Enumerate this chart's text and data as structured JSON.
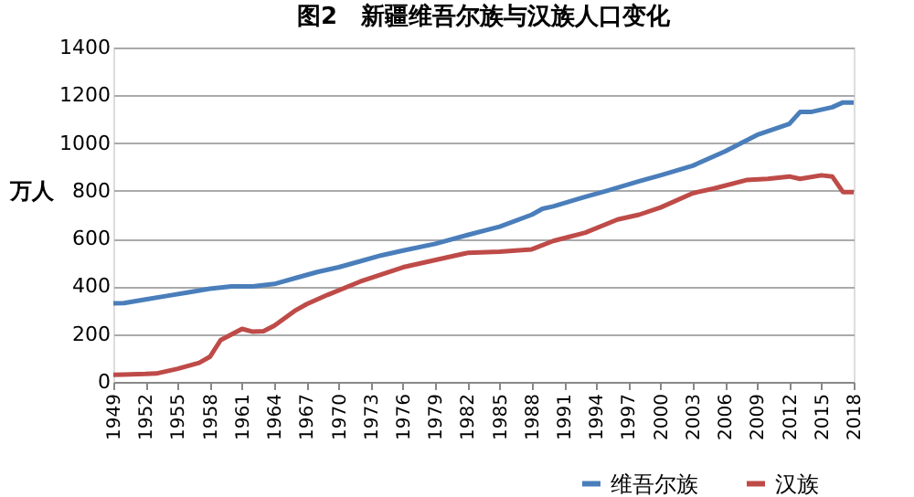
{
  "chart_data": {
    "type": "line",
    "title": "图2　新疆维吾尔族与汉族人口变化",
    "ylabel": "万人",
    "xlim": [
      1949,
      2018
    ],
    "xticks": [
      1949,
      1952,
      1955,
      1958,
      1961,
      1964,
      1967,
      1970,
      1973,
      1976,
      1979,
      1982,
      1985,
      1988,
      1991,
      1994,
      1997,
      2000,
      2003,
      2006,
      2009,
      2012,
      2015,
      2018
    ],
    "ylim": [
      0,
      1400
    ],
    "yticks": [
      0,
      200,
      400,
      600,
      800,
      1000,
      1200,
      1400
    ],
    "grid": "y",
    "legend": "bottom right",
    "marker": "none",
    "line_style": "solid",
    "series": [
      {
        "name": "维吾尔族",
        "color": "#4a7ebb",
        "x": [
          1949,
          1950,
          1952,
          1954,
          1956,
          1958,
          1960,
          1962,
          1964,
          1966,
          1968,
          1970,
          1972,
          1974,
          1976,
          1979,
          1982,
          1985,
          1988,
          1989,
          1990,
          1993,
          1995,
          1998,
          2000,
          2003,
          2006,
          2009,
          2012,
          2013,
          2014,
          2016,
          2017,
          2018
        ],
        "values": [
          329,
          330,
          345,
          360,
          375,
          390,
          400,
          400,
          410,
          435,
          460,
          480,
          505,
          530,
          550,
          578,
          615,
          650,
          700,
          725,
          735,
          775,
          800,
          840,
          865,
          905,
          965,
          1034,
          1080,
          1130,
          1130,
          1150,
          1170,
          1170
        ]
      },
      {
        "name": "汉族",
        "color": "#be4b48",
        "x": [
          1949,
          1950,
          1952,
          1953,
          1955,
          1957,
          1958,
          1959,
          1961,
          1962,
          1963,
          1964,
          1966,
          1967,
          1969,
          1972,
          1976,
          1980,
          1982,
          1985,
          1988,
          1990,
          1993,
          1996,
          1998,
          2000,
          2003,
          2005,
          2008,
          2010,
          2012,
          2013,
          2015,
          2016,
          2017,
          2018
        ],
        "values": [
          30,
          31,
          33,
          35,
          55,
          80,
          105,
          175,
          222,
          210,
          212,
          235,
          300,
          325,
          365,
          420,
          480,
          520,
          540,
          545,
          555,
          590,
          625,
          680,
          700,
          730,
          790,
          810,
          845,
          850,
          860,
          850,
          865,
          860,
          795,
          795
        ]
      }
    ]
  }
}
